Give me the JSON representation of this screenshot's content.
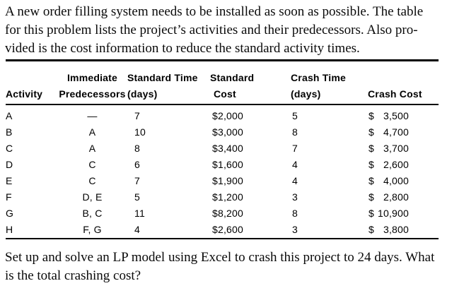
{
  "page": {
    "background_color": "#ffffff",
    "text_color": "#000000",
    "rule_color": "#000000"
  },
  "intro": {
    "lines": [
      "A new order filling system needs to be installed as soon as possible. The table",
      "for this problem lists the project’s activities and their predecessors. Also pro-",
      "vided is the cost information to reduce the standard activity times."
    ]
  },
  "table": {
    "headers": {
      "activity": {
        "line1": "",
        "line2": "Activity"
      },
      "predecessors": {
        "line1": "Immediate",
        "line2": "Predecessors"
      },
      "standard_time": {
        "line1": "Standard Time",
        "line2": "(days)"
      },
      "standard_cost": {
        "line1": "Standard",
        "line2": "Cost"
      },
      "crash_time": {
        "line1": "Crash Time",
        "line2": "(days)"
      },
      "crash_cost": {
        "line1": "",
        "line2": "Crash Cost"
      }
    },
    "rows": [
      {
        "activity": "A",
        "predecessors": "—",
        "standard_time": "7",
        "standard_cost": "$2,000",
        "crash_time": "5",
        "crash_cost": {
          "symbol": "$",
          "value": "3,500"
        }
      },
      {
        "activity": "B",
        "predecessors": "A",
        "standard_time": "10",
        "standard_cost": "$3,000",
        "crash_time": "8",
        "crash_cost": {
          "symbol": "$",
          "value": "4,700"
        }
      },
      {
        "activity": "C",
        "predecessors": "A",
        "standard_time": "8",
        "standard_cost": "$3,400",
        "crash_time": "7",
        "crash_cost": {
          "symbol": "$",
          "value": "3,700"
        }
      },
      {
        "activity": "D",
        "predecessors": "C",
        "standard_time": "6",
        "standard_cost": "$1,600",
        "crash_time": "4",
        "crash_cost": {
          "symbol": "$",
          "value": "2,600"
        }
      },
      {
        "activity": "E",
        "predecessors": "C",
        "standard_time": "7",
        "standard_cost": "$1,900",
        "crash_time": "4",
        "crash_cost": {
          "symbol": "$",
          "value": "4,000"
        }
      },
      {
        "activity": "F",
        "predecessors": "D, E",
        "standard_time": "5",
        "standard_cost": "$1,200",
        "crash_time": "3",
        "crash_cost": {
          "symbol": "$",
          "value": "2,800"
        }
      },
      {
        "activity": "G",
        "predecessors": "B, C",
        "standard_time": "11",
        "standard_cost": "$8,200",
        "crash_time": "8",
        "crash_cost": {
          "symbol": "$",
          "value": "10,900"
        }
      },
      {
        "activity": "H",
        "predecessors": "F, G",
        "standard_time": "4",
        "standard_cost": "$2,600",
        "crash_time": "3",
        "crash_cost": {
          "symbol": "$",
          "value": "3,800"
        }
      }
    ]
  },
  "question": {
    "lines": [
      "Set up and solve an LP model using Excel to crash this project to 24 days. What",
      "is the total crashing cost?"
    ]
  }
}
